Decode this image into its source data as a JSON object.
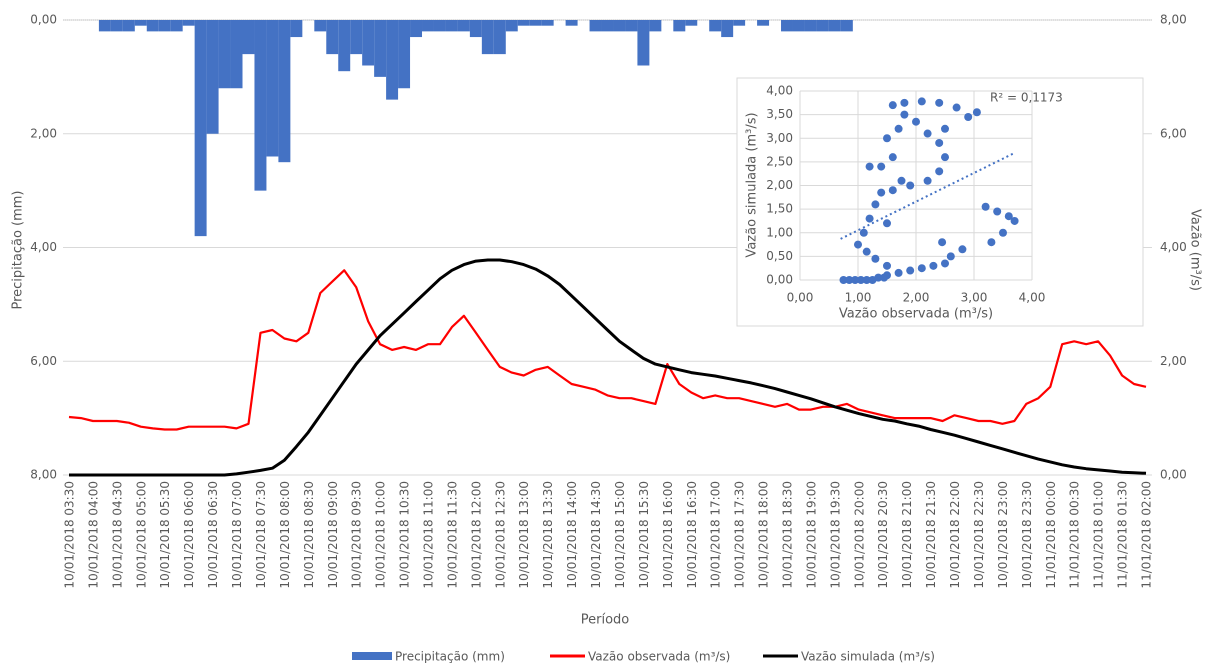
{
  "chart_data": [
    {
      "type": "combo",
      "xlabel": "Período",
      "ylabel": "Precipitação (mm)",
      "y2label": "Vazão (m³/s)",
      "categories": [
        "10/01/2018 03:30",
        null,
        "10/01/2018 04:00",
        null,
        "10/01/2018 04:30",
        null,
        "10/01/2018 05:00",
        null,
        "10/01/2018 05:30",
        null,
        "10/01/2018 06:00",
        null,
        "10/01/2018 06:30",
        null,
        "10/01/2018 07:00",
        null,
        "10/01/2018 07:30",
        null,
        "10/01/2018 08:00",
        null,
        "10/01/2018 08:30",
        null,
        "10/01/2018 09:00",
        null,
        "10/01/2018 09:30",
        null,
        "10/01/2018 10:00",
        null,
        "10/01/2018 10:30",
        null,
        "10/01/2018 11:00",
        null,
        "10/01/2018 11:30",
        null,
        "10/01/2018 12:00",
        null,
        "10/01/2018 12:30",
        null,
        "10/01/2018 13:00",
        null,
        "10/01/2018 13:30",
        null,
        "10/01/2018 14:00",
        null,
        "10/01/2018 14:30",
        null,
        "10/01/2018 15:00",
        null,
        "10/01/2018 15:30",
        null,
        "10/01/2018 16:00",
        null,
        "10/01/2018 16:30",
        null,
        "10/01/2018 17:00",
        null,
        "10/01/2018 17:30",
        null,
        "10/01/2018 18:00",
        null,
        "10/01/2018 18:30",
        null,
        "10/01/2018 19:00",
        null,
        "10/01/2018 19:30",
        null,
        "10/01/2018 20:00",
        null,
        "10/01/2018 20:30",
        null,
        "10/01/2018 21:00",
        null,
        "10/01/2018 21:30",
        null,
        "10/01/2018 22:00",
        null,
        "10/01/2018 22:30",
        null,
        "10/01/2018 23:00",
        null,
        "10/01/2018 23:30",
        null,
        "11/01/2018 00:00",
        null,
        "11/01/2018 00:30",
        null,
        "11/01/2018 01:00",
        null,
        "11/01/2018 01:30",
        null,
        "11/01/2018 02:00"
      ],
      "ylim": [
        0,
        8
      ],
      "yreverse": true,
      "yticks": [
        {
          "value": 0,
          "label": "0,00"
        },
        {
          "value": 2,
          "label": "2,00"
        },
        {
          "value": 4,
          "label": "4,00"
        },
        {
          "value": 6,
          "label": "6,00"
        },
        {
          "value": 8,
          "label": "8,00"
        }
      ],
      "y2lim": [
        0,
        8
      ],
      "y2ticks": [
        {
          "value": 0,
          "label": "0,00"
        },
        {
          "value": 2,
          "label": "2,00"
        },
        {
          "value": 4,
          "label": "4,00"
        },
        {
          "value": 6,
          "label": "6,00"
        },
        {
          "value": 8,
          "label": "8,00"
        }
      ],
      "grid": true,
      "legend": "bottom",
      "series": [
        {
          "name": "Precipitação (mm)",
          "type": "bar",
          "color": "#4472c4",
          "values": [
            0,
            0,
            0,
            0.2,
            0.2,
            0.2,
            0.1,
            0.2,
            0.2,
            0.2,
            0.1,
            3.8,
            2.0,
            1.2,
            1.2,
            0.6,
            3.0,
            2.4,
            2.5,
            0.3,
            0,
            0.2,
            0.6,
            0.9,
            0.6,
            0.8,
            1.0,
            1.4,
            1.2,
            0.3,
            0.2,
            0.2,
            0.2,
            0.2,
            0.3,
            0.6,
            0.6,
            0.2,
            0.1,
            0.1,
            0.1,
            0,
            0.1,
            0,
            0.2,
            0.2,
            0.2,
            0.2,
            0.8,
            0.2,
            0,
            0.2,
            0.1,
            0,
            0.2,
            0.3,
            0.1,
            0,
            0.1,
            0,
            0.2,
            0.2,
            0.2,
            0.2,
            0.2,
            0.2,
            0,
            0,
            0,
            0,
            0,
            0,
            0,
            0,
            0,
            0,
            0,
            0,
            0,
            0,
            0,
            0,
            0,
            0,
            0,
            0,
            0,
            0,
            0,
            0,
            0
          ]
        },
        {
          "name": "Vazão observada (m³/s)",
          "type": "line",
          "axis": "y2",
          "color": "#ff0000",
          "values": [
            1.02,
            1.0,
            0.95,
            0.95,
            0.95,
            0.92,
            0.85,
            0.82,
            0.8,
            0.8,
            0.85,
            0.85,
            0.85,
            0.85,
            0.82,
            0.9,
            2.5,
            2.55,
            2.4,
            2.35,
            2.5,
            3.2,
            3.4,
            3.6,
            3.3,
            2.7,
            2.3,
            2.2,
            2.25,
            2.2,
            2.3,
            2.3,
            2.6,
            2.8,
            2.5,
            2.2,
            1.9,
            1.8,
            1.75,
            1.85,
            1.9,
            1.75,
            1.6,
            1.55,
            1.5,
            1.4,
            1.35,
            1.35,
            1.3,
            1.25,
            1.95,
            1.6,
            1.45,
            1.35,
            1.4,
            1.35,
            1.35,
            1.3,
            1.25,
            1.2,
            1.25,
            1.15,
            1.15,
            1.2,
            1.2,
            1.25,
            1.15,
            1.1,
            1.05,
            1.0,
            1.0,
            1.0,
            1.0,
            0.95,
            1.05,
            1.0,
            0.95,
            0.95,
            0.9,
            0.95,
            1.25,
            1.35,
            1.55,
            2.3,
            2.35,
            2.3,
            2.35,
            2.1,
            1.75,
            1.6,
            1.55
          ]
        },
        {
          "name": "Vazão simulada (m³/s)",
          "type": "line",
          "axis": "y2",
          "color": "#000000",
          "values": [
            0,
            0,
            0,
            0,
            0,
            0,
            0,
            0,
            0,
            0,
            0,
            0,
            0,
            0,
            0.02,
            0.05,
            0.08,
            0.12,
            0.26,
            0.5,
            0.75,
            1.05,
            1.35,
            1.65,
            1.95,
            2.2,
            2.45,
            2.65,
            2.85,
            3.05,
            3.25,
            3.45,
            3.6,
            3.7,
            3.76,
            3.78,
            3.78,
            3.75,
            3.7,
            3.62,
            3.5,
            3.35,
            3.15,
            2.95,
            2.75,
            2.55,
            2.35,
            2.2,
            2.05,
            1.95,
            1.9,
            1.85,
            1.8,
            1.77,
            1.74,
            1.7,
            1.66,
            1.62,
            1.57,
            1.52,
            1.46,
            1.4,
            1.34,
            1.27,
            1.2,
            1.14,
            1.08,
            1.03,
            0.98,
            0.95,
            0.9,
            0.86,
            0.8,
            0.75,
            0.7,
            0.64,
            0.58,
            0.52,
            0.46,
            0.4,
            0.34,
            0.28,
            0.23,
            0.18,
            0.14,
            0.11,
            0.09,
            0.07,
            0.05,
            0.04,
            0.03
          ]
        }
      ]
    },
    {
      "type": "scatter",
      "xlabel": "Vazão observada (m³/s)",
      "ylabel": "Vazão simulada (m³/s)",
      "color": "#4472c4",
      "x": [
        0.75,
        0.85,
        0.95,
        1.05,
        1.15,
        1.25,
        1.35,
        1.5,
        1.7,
        1.9,
        2.1,
        2.3,
        2.5,
        2.6,
        2.45,
        1.5,
        1.3,
        1.15,
        1.0,
        1.1,
        1.2,
        1.3,
        1.4,
        1.6,
        1.9,
        2.2,
        2.4,
        2.5,
        2.4,
        2.2,
        2.0,
        1.8,
        1.6,
        1.8,
        2.1,
        2.4,
        2.7,
        2.9,
        3.05,
        3.2,
        3.4,
        3.6,
        3.7,
        3.5,
        3.3,
        2.8,
        1.4,
        1.2,
        1.5,
        1.7,
        2.5,
        1.5,
        1.6,
        1.75,
        1.45
      ],
      "y": [
        0,
        0,
        0,
        0,
        0,
        0,
        0.05,
        0.1,
        0.15,
        0.2,
        0.25,
        0.3,
        0.35,
        0.5,
        0.8,
        0.3,
        0.45,
        0.6,
        0.75,
        1.0,
        1.3,
        1.6,
        1.85,
        1.9,
        2.0,
        2.1,
        2.3,
        2.6,
        2.9,
        3.1,
        3.35,
        3.5,
        3.7,
        3.75,
        3.78,
        3.75,
        3.65,
        3.45,
        3.55,
        1.55,
        1.45,
        1.35,
        1.25,
        1.0,
        0.8,
        0.65,
        2.4,
        2.4,
        1.2,
        3.2,
        3.2,
        3.0,
        2.6,
        2.1,
        0.05
      ],
      "xlim": [
        0,
        4
      ],
      "xticks": [
        {
          "value": 0,
          "label": "0,00"
        },
        {
          "value": 1,
          "label": "1,00"
        },
        {
          "value": 2,
          "label": "2,00"
        },
        {
          "value": 3,
          "label": "3,00"
        },
        {
          "value": 4,
          "label": "4,00"
        }
      ],
      "ylim": [
        0,
        4
      ],
      "yticks": [
        {
          "value": 0,
          "label": "0,00"
        },
        {
          "value": 0.5,
          "label": "0,50"
        },
        {
          "value": 1,
          "label": "1,00"
        },
        {
          "value": 1.5,
          "label": "1,50"
        },
        {
          "value": 2,
          "label": "2,00"
        },
        {
          "value": 2.5,
          "label": "2,50"
        },
        {
          "value": 3,
          "label": "3,00"
        },
        {
          "value": 3.5,
          "label": "3,50"
        },
        {
          "value": 4,
          "label": "4,00"
        }
      ],
      "grid": true,
      "trendline": {
        "x": [
          0.7,
          3.7
        ],
        "y": [
          0.87,
          2.69
        ],
        "color": "#4472c4"
      },
      "annotation": "R² = 0,1173"
    }
  ]
}
